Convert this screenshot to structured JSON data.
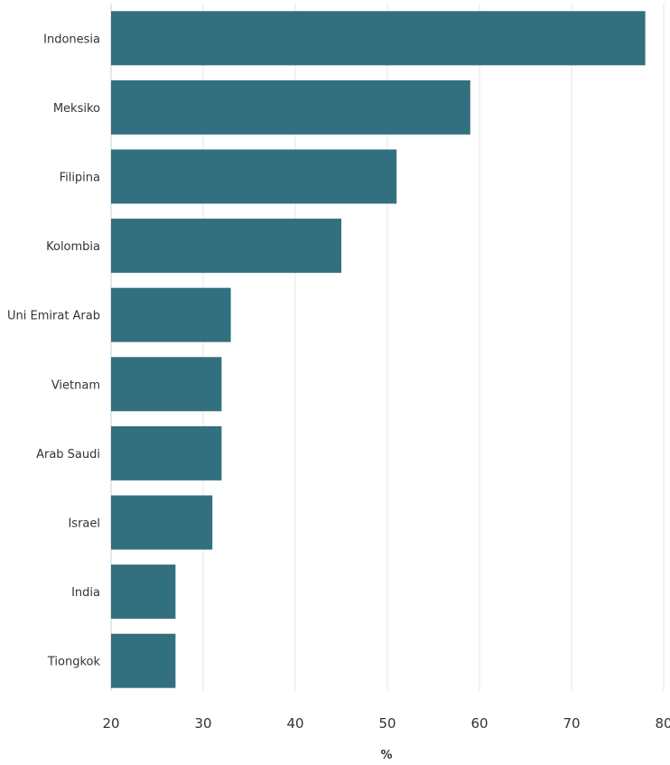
{
  "chart_data": {
    "type": "bar",
    "orientation": "horizontal",
    "categories": [
      "Indonesia",
      "Meksiko",
      "Filipina",
      "Kolombia",
      "Uni Emirat Arab",
      "Vietnam",
      "Arab Saudi",
      "Israel",
      "India",
      "Tiongkok"
    ],
    "values": [
      78,
      59,
      51,
      45,
      33,
      32,
      32,
      31,
      27,
      27
    ],
    "xlabel": "%",
    "ylabel": "",
    "xlim": [
      20,
      80
    ],
    "xticks": [
      "20",
      "30",
      "40",
      "50",
      "60",
      "70",
      "80"
    ],
    "grid": "vertical",
    "legend": "none",
    "colors": {
      "bar": "#33707f",
      "grid": "#e6e6e6",
      "axis": "#cfcfcf",
      "text": "#333333"
    }
  }
}
